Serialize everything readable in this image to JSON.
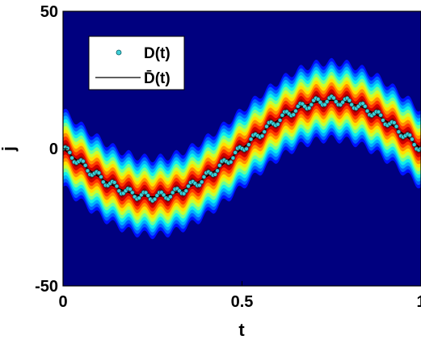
{
  "chart_data": {
    "type": "heatmap",
    "title": "",
    "xlabel": "t",
    "ylabel": "j",
    "xlim": [
      0,
      1
    ],
    "ylim": [
      -50,
      50
    ],
    "x_ticks": [
      {
        "value": 0,
        "label": "0"
      },
      {
        "value": 0.5,
        "label": "0.5"
      },
      {
        "value": 1,
        "label": "1"
      }
    ],
    "y_ticks": [
      {
        "value": -50,
        "label": "-50"
      },
      {
        "value": 0,
        "label": "0"
      },
      {
        "value": 50,
        "label": "50"
      }
    ],
    "colormap": "jet",
    "background_color": "#00007f",
    "legend_position": "top-left",
    "center_trajectory": {
      "amplitude": 17.5,
      "oscillation_amplitude": 1.5,
      "oscillation_cycles": 23
    },
    "distribution_halfwidth": 14,
    "series": [
      {
        "name": "D(t)",
        "style": "markers",
        "marker_color": "#40d0d8",
        "edge_color": "#0a5a60"
      },
      {
        "name": "D̄(t)",
        "style": "line",
        "color": "#000000"
      }
    ]
  }
}
